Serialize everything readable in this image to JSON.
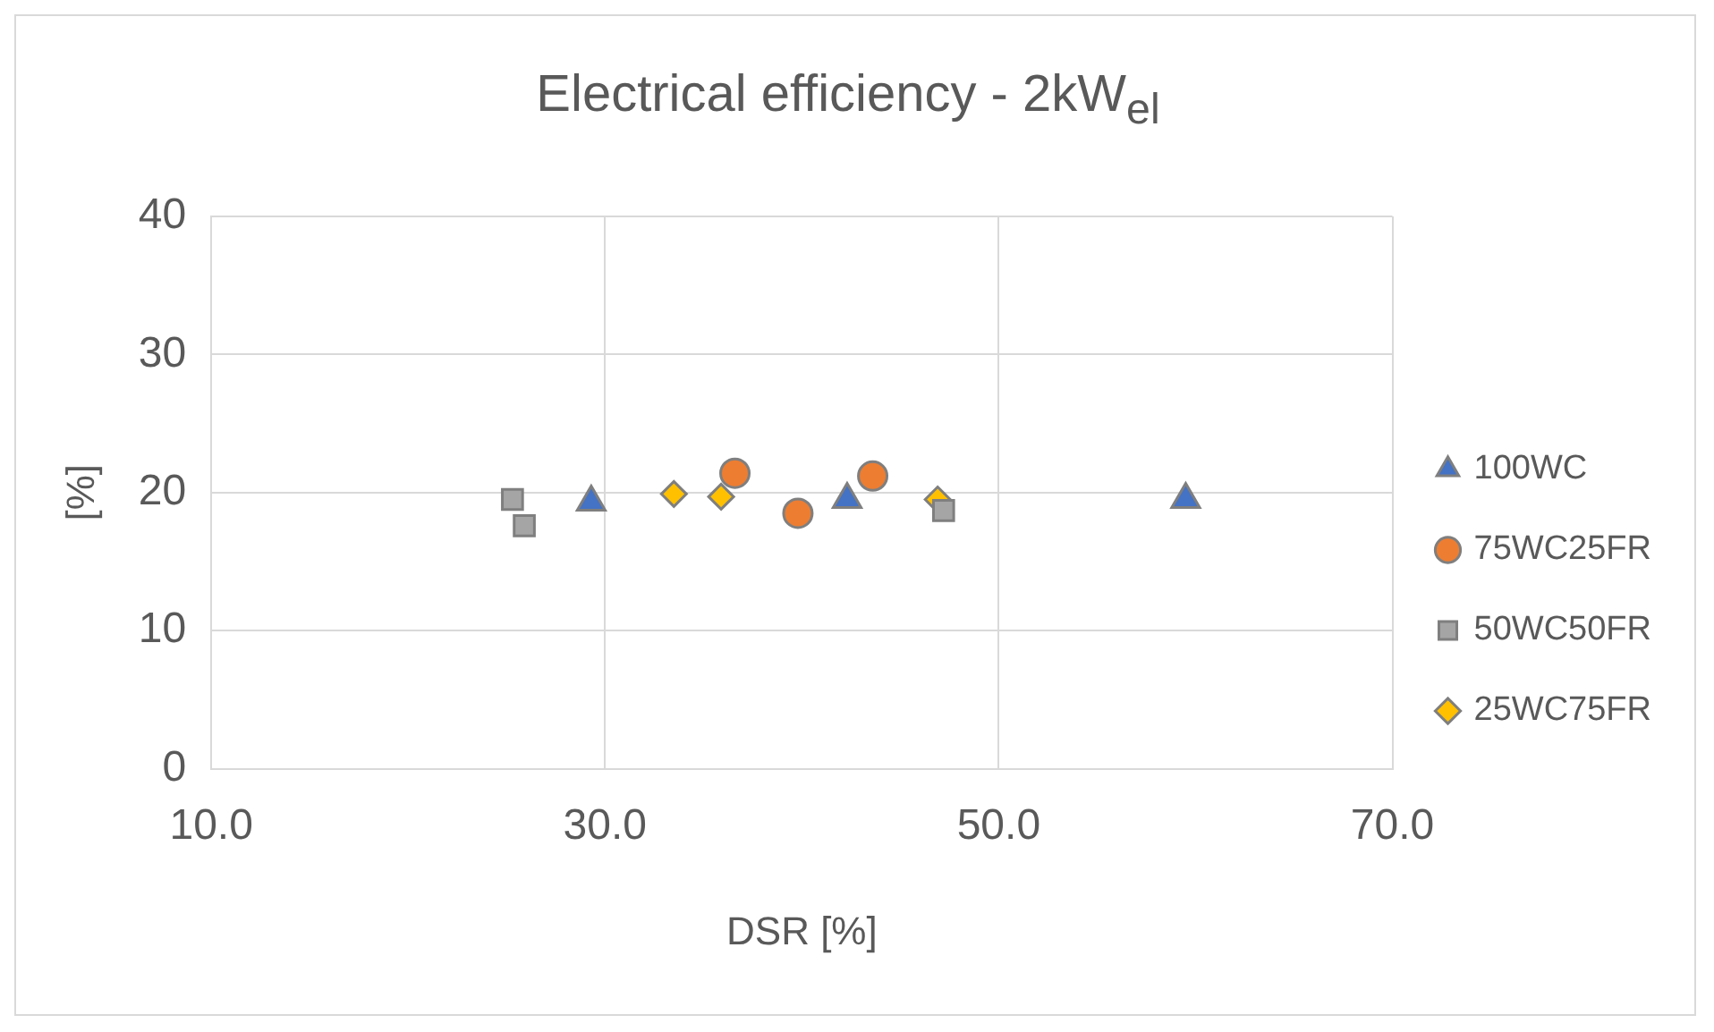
{
  "chart_data": {
    "type": "scatter",
    "title": "Electrical efficiency - 2kW$_{el}$",
    "xlabel": "DSR [%]",
    "ylabel": "[%]",
    "xlim": [
      10,
      70
    ],
    "xticks": [
      {
        "value": 10,
        "label": "10.0"
      },
      {
        "value": 30,
        "label": "30.0"
      },
      {
        "value": 50,
        "label": "50.0"
      },
      {
        "value": 70,
        "label": "70.0"
      }
    ],
    "ylim": [
      0,
      40
    ],
    "yticks": [
      0,
      10,
      20,
      30,
      40
    ],
    "grid": true,
    "legend": "right",
    "series": [
      {
        "name": "100WC",
        "color": "#4472c4",
        "marker": "triangle",
        "x": [
          29.3,
          42.3,
          59.5
        ],
        "values": [
          19.3,
          19.5,
          19.5
        ]
      },
      {
        "name": "75WC25FR",
        "color": "#ed7d31",
        "marker": "circle",
        "x": [
          36.6,
          39.8,
          43.6
        ],
        "values": [
          21.4,
          18.5,
          21.2
        ]
      },
      {
        "name": "50WC50FR",
        "color": "#a5a5a5",
        "marker": "square",
        "x": [
          25.3,
          25.9,
          47.2
        ],
        "values": [
          19.5,
          17.6,
          18.7
        ]
      },
      {
        "name": "25WC75FR",
        "color": "#ffc000",
        "marker": "diamond",
        "x": [
          33.5,
          35.9,
          46.9
        ],
        "values": [
          19.9,
          19.7,
          19.5
        ]
      }
    ]
  }
}
